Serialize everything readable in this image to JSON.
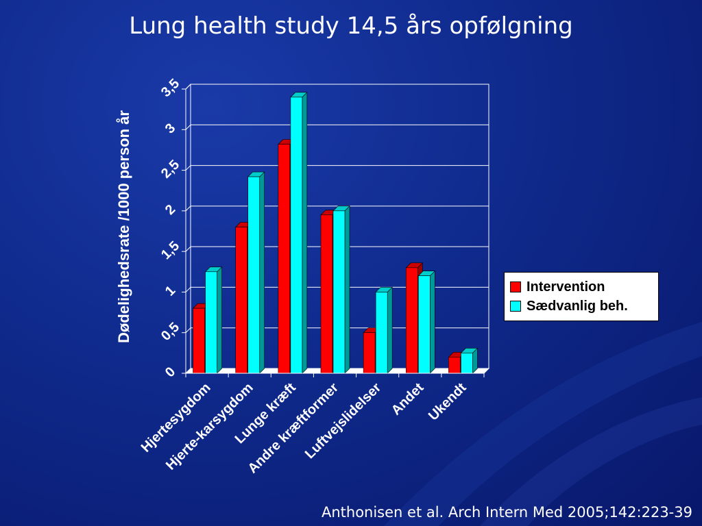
{
  "slide": {
    "title": "Lung health study 14,5 års opfølgning",
    "citation": "Anthonisen et al. Arch Intern Med 2005;142:223-39"
  },
  "chart_data": {
    "type": "bar",
    "title": "",
    "ylabel": "Dødelighedsrate /1000 person år",
    "xlabel": "",
    "ylim": [
      0,
      3.5
    ],
    "yticks": [
      "0",
      "0,5",
      "1",
      "1,5",
      "2",
      "2,5",
      "3",
      "3,5"
    ],
    "grid": true,
    "legend_position": "right",
    "categories": [
      "Hjertesygdom",
      "Hjerte-karsygdom",
      "Lunge kræft",
      "Andre kræftformer",
      "Luftvejslidelser",
      "Andet",
      "Ukendt"
    ],
    "series": [
      {
        "name": "Intervention",
        "color": "#ff0000",
        "values": [
          0.8,
          1.8,
          2.82,
          1.95,
          0.5,
          1.3,
          0.2
        ]
      },
      {
        "name": "Sædvanlig beh.",
        "color": "#00ffff",
        "values": [
          1.25,
          2.42,
          3.4,
          2.0,
          1.0,
          1.2,
          0.25
        ]
      }
    ]
  }
}
